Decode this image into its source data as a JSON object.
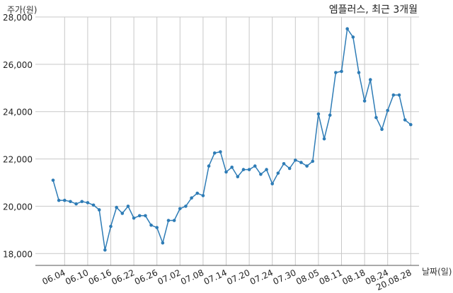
{
  "chart_data": {
    "type": "line",
    "title": "엠플러스, 최근 3개월",
    "xlabel": "날짜(일)",
    "ylabel": "주가(원)",
    "ylim": [
      17500,
      28000
    ],
    "yticks": [
      18000,
      20000,
      22000,
      24000,
      26000,
      28000
    ],
    "ytick_labels": [
      "18,000",
      "20,000",
      "22,000",
      "24,000",
      "26,000",
      "28,000"
    ],
    "xtick_labels": [
      "06.04",
      "06.10",
      "06.16",
      "06.22",
      "06.26",
      "07.02",
      "07.08",
      "07.14",
      "07.20",
      "07.24",
      "07.30",
      "08.05",
      "08.11",
      "08.18",
      "08.24",
      "20.08.28"
    ],
    "xtick_index": [
      2,
      6,
      10,
      14,
      18,
      22,
      26,
      30,
      34,
      38,
      42,
      46,
      50,
      54,
      58,
      62
    ],
    "grid": true,
    "line_color": "#2e7cb6",
    "series": [
      {
        "values": [
          21100,
          20250,
          20250,
          20200,
          20100,
          20200,
          20150,
          20050,
          19850,
          18150,
          19150,
          19950,
          19700,
          20000,
          19500,
          19600,
          19600,
          19200,
          19100,
          18450,
          19400,
          19400,
          19900,
          20000,
          20350,
          20550,
          20450,
          21700,
          22250,
          22300,
          21450,
          21650,
          21250,
          21550,
          21550,
          21700,
          21350,
          21550,
          20950,
          21400,
          21800,
          21600,
          21950,
          21850,
          21700,
          21900,
          23900,
          22850,
          23850,
          25650,
          25700,
          27500,
          27150,
          25650,
          24450,
          25350,
          23750,
          23250,
          24050,
          24700,
          24700,
          23650,
          23450
        ]
      }
    ]
  }
}
